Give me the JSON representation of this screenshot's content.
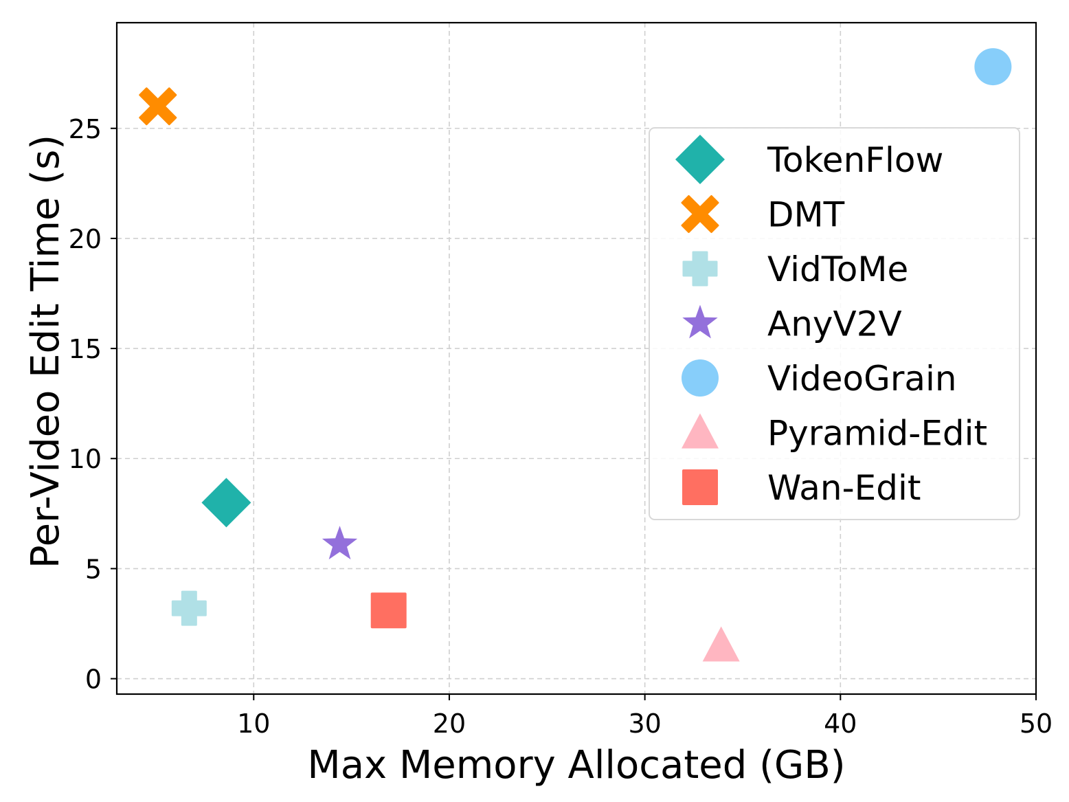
{
  "chart_data": {
    "type": "scatter",
    "title": "",
    "xlabel": "Max Memory Allocated (GB)",
    "ylabel": "Per-Video Edit Time (s)",
    "xlim": [
      3,
      50
    ],
    "ylim": [
      -0.7,
      29.8
    ],
    "xticks": [
      10,
      20,
      30,
      40,
      50
    ],
    "yticks": [
      0,
      5,
      10,
      15,
      20,
      25
    ],
    "grid": true,
    "legend_position": "right",
    "series": [
      {
        "name": "TokenFlow",
        "marker": "diamond",
        "color": "#20B2AA",
        "x": 8.6,
        "y": 8.0
      },
      {
        "name": "DMT",
        "marker": "x",
        "color": "#FF8C00",
        "x": 5.1,
        "y": 26.0
      },
      {
        "name": "VidToMe",
        "marker": "plus",
        "color": "#B0E0E6",
        "x": 6.7,
        "y": 3.2
      },
      {
        "name": "AnyV2V",
        "marker": "star",
        "color": "#9370DB",
        "x": 14.4,
        "y": 6.1
      },
      {
        "name": "VideoGrain",
        "marker": "circle",
        "color": "#87CEFA",
        "x": 47.8,
        "y": 27.8
      },
      {
        "name": "Pyramid-Edit",
        "marker": "triangle",
        "color": "#FFB6C1",
        "x": 33.9,
        "y": 1.5
      },
      {
        "name": "Wan-Edit",
        "marker": "square",
        "color": "#FF6F61",
        "x": 16.9,
        "y": 3.1
      }
    ]
  }
}
